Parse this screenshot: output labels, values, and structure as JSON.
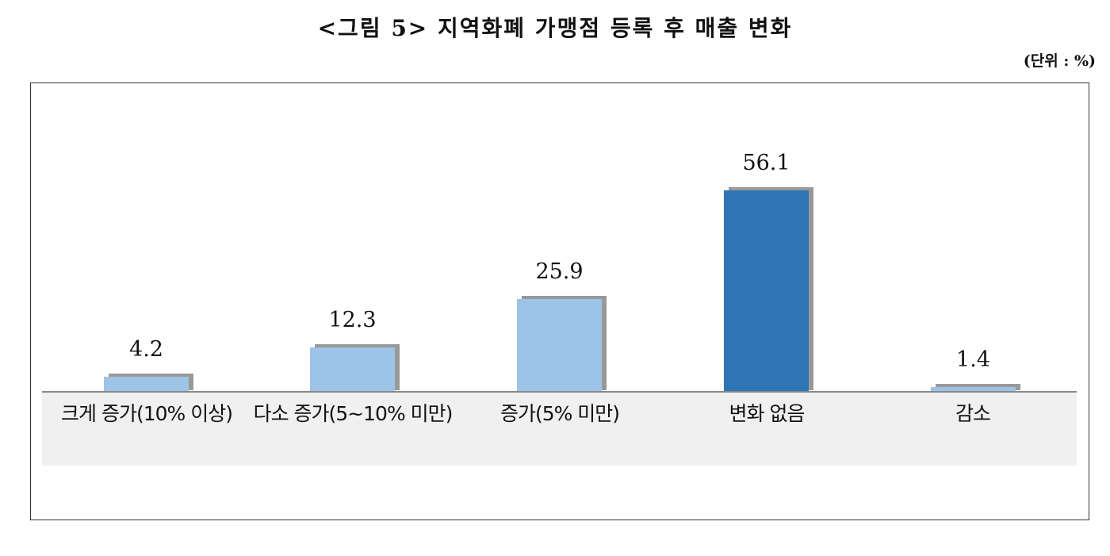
{
  "title": "<그림 5> 지역화폐 가맹점 등록 후 매출 변화",
  "unit_label": "(단위 : %)",
  "colors": {
    "light_bar": "#9dc3e6",
    "dark_bar": "#2e75b6",
    "shadow": "#999999",
    "label_band": "#f0f0f0"
  },
  "chart_data": {
    "type": "bar",
    "title": "<그림 5> 지역화폐 가맹점 등록 후 매출 변화",
    "subtitle": "(단위 : %)",
    "categories": [
      "크게 증가(10% 이상)",
      "다소 증가(5~10% 미만)",
      "증가(5% 미만)",
      "변화 없음",
      "감소"
    ],
    "values": [
      4.2,
      12.3,
      25.9,
      56.1,
      1.4
    ],
    "value_labels": [
      "4.2",
      "12.3",
      "25.9",
      "56.1",
      "1.4"
    ],
    "xlabel": "",
    "ylabel": "%",
    "ylim": [
      0,
      60
    ],
    "grid": false,
    "legend": "none",
    "highlight_index": 3
  }
}
